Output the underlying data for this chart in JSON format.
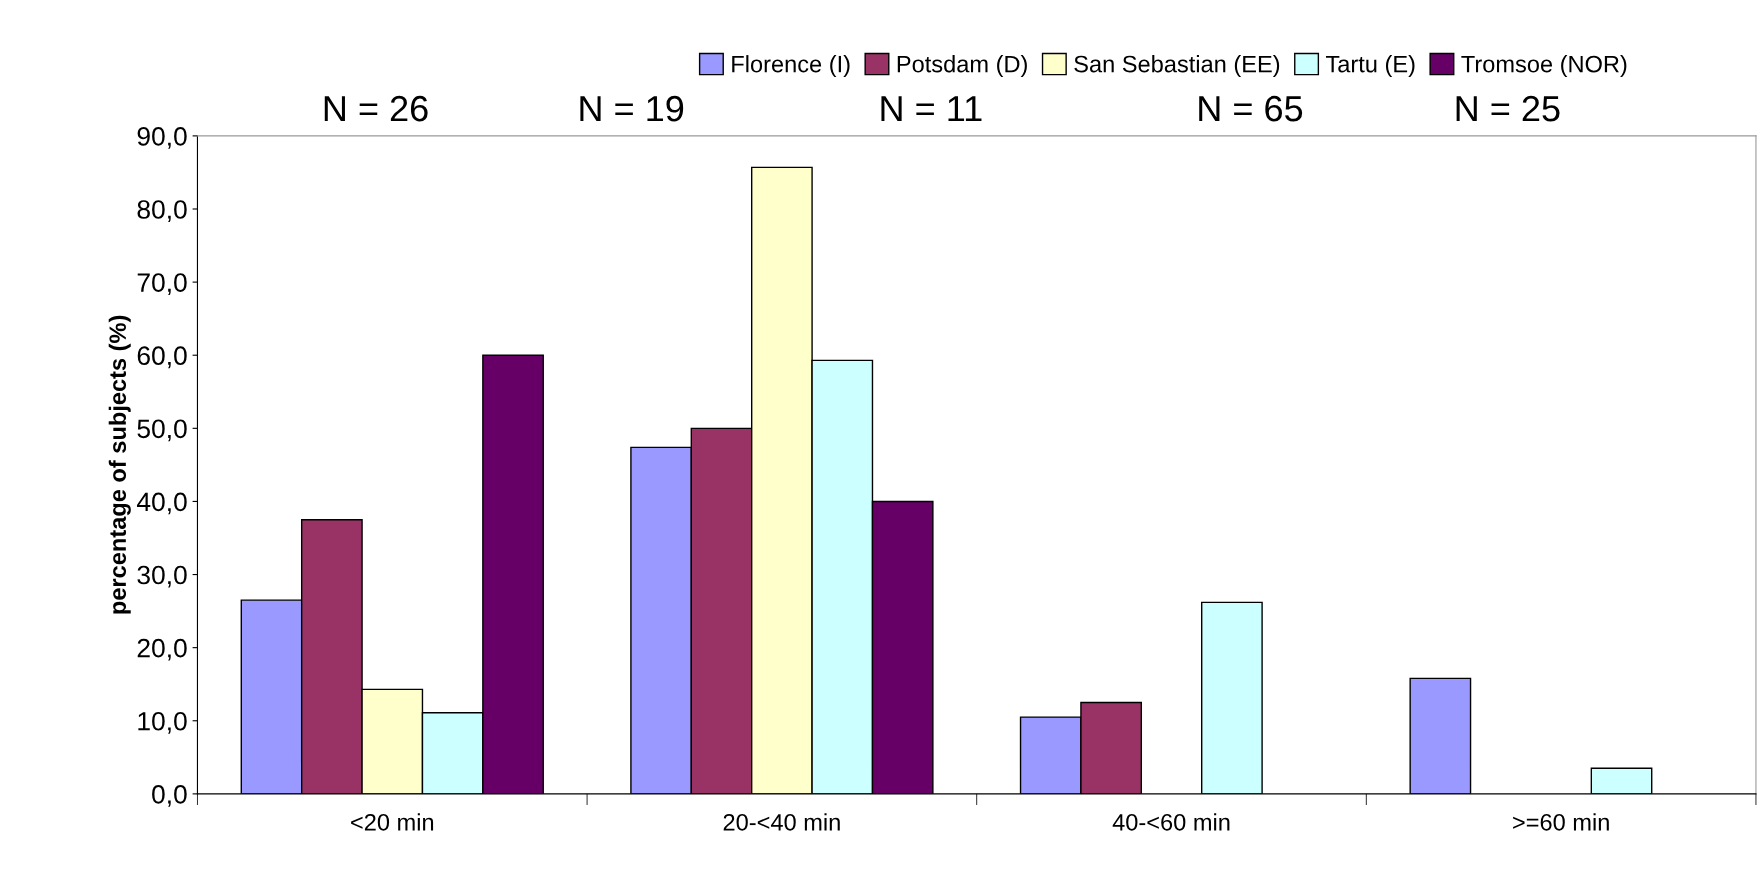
{
  "chart_data": {
    "type": "bar",
    "categories": [
      "<20 min",
      "20-<40 min",
      "40-<60 min",
      ">=60 min"
    ],
    "ylabel": "percentage of subjects (%)",
    "series": [
      {
        "name": "Florence (I)",
        "color": "#9999ff",
        "values": [
          26.5,
          47.4,
          10.5,
          15.8
        ]
      },
      {
        "name": "Potsdam (D)",
        "color": "#993366",
        "values": [
          37.5,
          50.0,
          12.5,
          null
        ]
      },
      {
        "name": "San Sebastian (EE)",
        "color": "#ffffcc",
        "values": [
          14.3,
          85.7,
          null,
          null
        ]
      },
      {
        "name": "Tartu (E)",
        "color": "#ccffff",
        "values": [
          11.1,
          59.3,
          26.2,
          3.5
        ]
      },
      {
        "name": "Tromsoe (NOR)",
        "color": "#660066",
        "values": [
          60.0,
          40.0,
          null,
          null
        ]
      }
    ],
    "annotations": [
      "N = 26",
      "N = 19",
      "N = 11",
      "N = 65",
      "N = 25"
    ],
    "ylim": [
      0,
      90
    ],
    "yticks": [
      {
        "value": 0,
        "label": "0,0"
      },
      {
        "value": 10,
        "label": "10,0"
      },
      {
        "value": 20,
        "label": "20,0"
      },
      {
        "value": 30,
        "label": "30,0"
      },
      {
        "value": 40,
        "label": "40,0"
      },
      {
        "value": 50,
        "label": "50,0"
      },
      {
        "value": 60,
        "label": "60,0"
      },
      {
        "value": 70,
        "label": "70,0"
      },
      {
        "value": 80,
        "label": "80,0"
      },
      {
        "value": 90,
        "label": "90,0"
      }
    ],
    "grid": false,
    "legend": "top"
  }
}
